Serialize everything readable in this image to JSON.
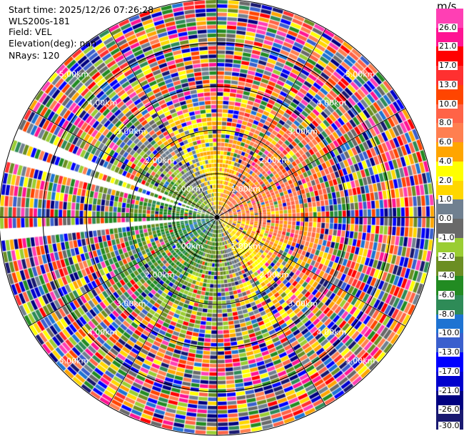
{
  "info": {
    "start_time": "Start time: 2025/12/26 07:26:28",
    "station": "WLS200s-181",
    "field": "Field: VEL",
    "elevation": "Elevation(deg): nan",
    "nrays": "NRays: 120"
  },
  "chart_data": {
    "type": "heatmap",
    "subtype": "polar PPI radar scan",
    "field": "VEL",
    "units": "m/s",
    "n_rays": 120,
    "max_range_km": 5.0,
    "range_rings_km": [
      1,
      2,
      3,
      4,
      5
    ],
    "range_ring_labels": [
      "1.00km",
      "2.00km",
      "3.00km",
      "4.00km",
      "5.00km"
    ],
    "azimuth_gridlines_deg": [
      0,
      30,
      60,
      90,
      120,
      150,
      180,
      210,
      240,
      270,
      300,
      330
    ],
    "missing_azimuth_sectors_deg": [
      [
        285,
        288
      ],
      [
        290,
        294
      ],
      [
        264,
        267
      ]
    ],
    "pattern_summary": "near range: positive velocities (yellow/orange) to north and east, negative (green/blue) to west and south-west; beyond ~3 km mostly noisy random values",
    "colorbar": {
      "unit": "m/s",
      "labels": [
        "26.0",
        "21.0",
        "17.0",
        "13.0",
        "10.0",
        "8.0",
        "6.0",
        "4.0",
        "2.0",
        "1.0",
        "0.0",
        "-1.0",
        "-2.0",
        "-4.0",
        "-6.0",
        "-8.0",
        "-10.0",
        "-13.0",
        "-17.0",
        "-21.0",
        "-26.0",
        "-30.0"
      ],
      "colors": [
        "#ff3fb4",
        "#ff1493",
        "#ff0000",
        "#ff3030",
        "#ff4500",
        "#ff6347",
        "#ff7f50",
        "#ffa500",
        "#ffff00",
        "#ffd700",
        "#708090",
        "#696969",
        "#9acd32",
        "#6b8e23",
        "#228b22",
        "#2e8b57",
        "#1e73d2",
        "#3a5fcd",
        "#0000ff",
        "#0000cd",
        "#000080",
        "#191970"
      ]
    }
  }
}
